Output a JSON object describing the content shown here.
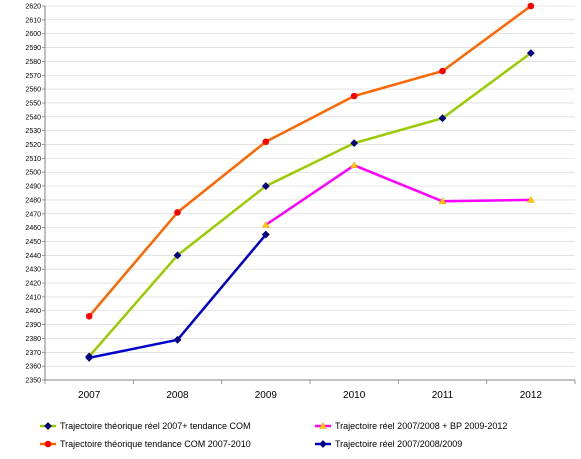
{
  "chart_data": {
    "type": "line",
    "categories": [
      "2007",
      "2008",
      "2009",
      "2010",
      "2011",
      "2012"
    ],
    "ylim": [
      2350,
      2620
    ],
    "ytick_step": 10,
    "grid": "horizontal",
    "legend_position": "bottom",
    "series": [
      {
        "name": "Trajectoire théorique réel 2007+ tendance COM",
        "color": "#99CC00",
        "marker": "diamond",
        "values": [
          2367,
          2440,
          2490,
          2521,
          2539,
          2586
        ]
      },
      {
        "name": "Trajectoire théorique tendance COM 2007-2010",
        "color": "#FF6600",
        "marker": "circle",
        "values": [
          2396,
          2471,
          2522,
          2555,
          2573,
          2620
        ]
      },
      {
        "name": "Trajectoire réel 2007/2008 + BP 2009-2012",
        "color": "#FF00FF",
        "marker": "triangle",
        "values": [
          null,
          null,
          2462,
          2505,
          2479,
          2480
        ]
      },
      {
        "name": "Trajectoire réel 2007/2008/2009",
        "color": "#0000CC",
        "marker": "diamond",
        "values": [
          2366,
          2379,
          2455,
          null,
          null,
          null
        ]
      }
    ]
  }
}
